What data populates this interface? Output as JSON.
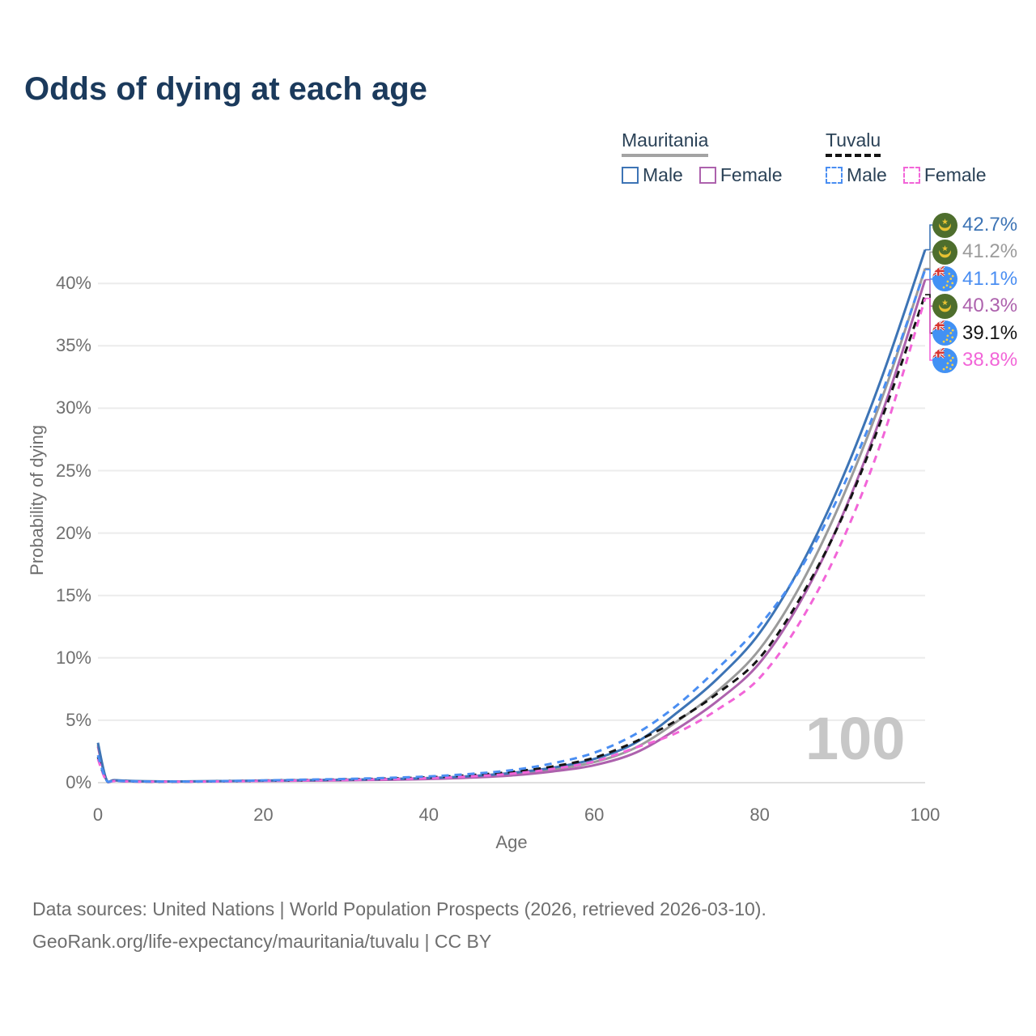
{
  "title": "Odds of dying at each age",
  "watermark": "100",
  "legend": {
    "groups": [
      {
        "name": "Mauritania",
        "line_style": "solid",
        "underline_color": "#a3a3a3",
        "items": [
          {
            "label": "Male",
            "color": "#3d74b5"
          },
          {
            "label": "Female",
            "color": "#ad62ad"
          }
        ]
      },
      {
        "name": "Tuvalu",
        "line_style": "dashed",
        "underline_color": "#141414",
        "items": [
          {
            "label": "Male",
            "color": "#4a8ef2"
          },
          {
            "label": "Female",
            "color": "#f265d8"
          }
        ]
      }
    ]
  },
  "chart_data": {
    "type": "line",
    "title": "Odds of dying at each age",
    "xlabel": "Age",
    "ylabel": "Probability of dying",
    "xlim": [
      0,
      100
    ],
    "ylim": [
      0,
      44
    ],
    "grid": true,
    "legend_position": "top-right",
    "x_ticks": [
      0,
      20,
      40,
      60,
      80,
      100
    ],
    "y_ticks": [
      {
        "value": 0,
        "label": "0%"
      },
      {
        "value": 5,
        "label": "5%"
      },
      {
        "value": 10,
        "label": "10%"
      },
      {
        "value": 15,
        "label": "15%"
      },
      {
        "value": 20,
        "label": "20%"
      },
      {
        "value": 25,
        "label": "25%"
      },
      {
        "value": 30,
        "label": "30%"
      },
      {
        "value": 35,
        "label": "35%"
      },
      {
        "value": 40,
        "label": "40%"
      }
    ],
    "x": [
      0,
      1,
      2,
      5,
      10,
      15,
      20,
      25,
      30,
      35,
      40,
      45,
      50,
      55,
      60,
      65,
      70,
      75,
      80,
      85,
      90,
      95,
      100
    ],
    "series": [
      {
        "name": "Mauritania Total",
        "country": "Mauritania",
        "sex": "Both",
        "color": "#9b9b9b",
        "dash": "solid",
        "values": [
          3.05,
          0.28,
          0.19,
          0.11,
          0.1,
          0.12,
          0.15,
          0.18,
          0.21,
          0.26,
          0.33,
          0.46,
          0.68,
          1.05,
          1.65,
          2.8,
          4.9,
          7.4,
          10.7,
          15.9,
          22.8,
          31.2,
          41.2
        ]
      },
      {
        "name": "Mauritania Female",
        "country": "Mauritania",
        "sex": "Female",
        "color": "#ad62ad",
        "dash": "solid",
        "values": [
          2.9,
          0.26,
          0.18,
          0.1,
          0.09,
          0.11,
          0.13,
          0.16,
          0.19,
          0.23,
          0.29,
          0.4,
          0.58,
          0.9,
          1.4,
          2.4,
          4.3,
          6.6,
          9.6,
          14.6,
          21.4,
          30.0,
          40.3
        ]
      },
      {
        "name": "Mauritania Male",
        "country": "Mauritania",
        "sex": "Male",
        "color": "#3d74b5",
        "dash": "solid",
        "values": [
          3.2,
          0.3,
          0.2,
          0.12,
          0.1,
          0.13,
          0.17,
          0.2,
          0.24,
          0.29,
          0.37,
          0.52,
          0.78,
          1.2,
          1.9,
          3.2,
          5.6,
          8.4,
          12.0,
          17.4,
          24.4,
          32.9,
          42.7
        ]
      },
      {
        "name": "Tuvalu Total",
        "country": "Tuvalu",
        "sex": "Both",
        "color": "#141414",
        "dash": "dashed",
        "values": [
          2.05,
          0.2,
          0.14,
          0.09,
          0.085,
          0.11,
          0.16,
          0.21,
          0.26,
          0.33,
          0.43,
          0.6,
          0.86,
          1.3,
          2.0,
          3.3,
          5.0,
          7.2,
          10.0,
          14.9,
          21.3,
          29.6,
          39.1
        ]
      },
      {
        "name": "Tuvalu Female",
        "country": "Tuvalu",
        "sex": "Female",
        "color": "#f265d8",
        "dash": "dashed",
        "values": [
          1.9,
          0.18,
          0.13,
          0.085,
          0.08,
          0.1,
          0.14,
          0.18,
          0.22,
          0.28,
          0.36,
          0.5,
          0.72,
          1.1,
          1.7,
          2.8,
          4.0,
          5.9,
          8.4,
          13.0,
          19.4,
          27.9,
          38.8
        ]
      },
      {
        "name": "Tuvalu Male",
        "country": "Tuvalu",
        "sex": "Male",
        "color": "#4a8ef2",
        "dash": "dashed",
        "values": [
          2.2,
          0.22,
          0.15,
          0.1,
          0.09,
          0.12,
          0.18,
          0.24,
          0.3,
          0.38,
          0.5,
          0.7,
          1.0,
          1.55,
          2.4,
          3.9,
          6.2,
          9.2,
          12.6,
          17.2,
          23.6,
          31.6,
          41.1
        ]
      }
    ],
    "end_labels": [
      {
        "text": "42.7%",
        "color": "#3d74b5",
        "flag": "mauritania",
        "value": 42.7,
        "series": "Mauritania Male"
      },
      {
        "text": "41.2%",
        "color": "#9b9b9b",
        "flag": "mauritania",
        "value": 41.2,
        "series": "Mauritania Total"
      },
      {
        "text": "41.1%",
        "color": "#4a8ef2",
        "flag": "tuvalu",
        "value": 41.1,
        "series": "Tuvalu Male"
      },
      {
        "text": "40.3%",
        "color": "#ad62ad",
        "flag": "mauritania",
        "value": 40.3,
        "series": "Mauritania Female"
      },
      {
        "text": "39.1%",
        "color": "#141414",
        "flag": "tuvalu",
        "value": 39.1,
        "series": "Tuvalu Total"
      },
      {
        "text": "38.8%",
        "color": "#f265d8",
        "flag": "tuvalu",
        "value": 38.8,
        "series": "Tuvalu Female"
      }
    ]
  },
  "footer": {
    "line1": "Data sources: United Nations | World Population Prospects (2026, retrieved 2026-03-10).",
    "line2": "GeoRank.org/life-expectancy/mauritania/tuvalu | CC BY"
  }
}
